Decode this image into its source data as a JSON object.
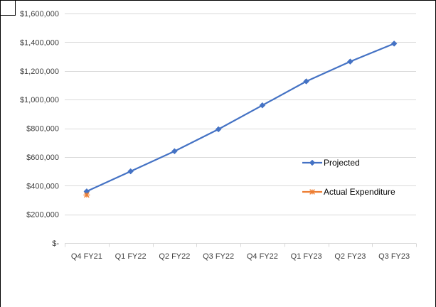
{
  "chart_data": {
    "type": "line",
    "categories": [
      "Q4 FY21",
      "Q1 FY22",
      "Q2 FY22",
      "Q3 FY22",
      "Q4 FY22",
      "Q1 FY23",
      "Q2 FY23",
      "Q3 FY23"
    ],
    "series": [
      {
        "name": "Projected",
        "color": "#4472C4",
        "marker": "diamond",
        "values": [
          360000,
          500000,
          640000,
          793000,
          960000,
          1127000,
          1265000,
          1390000
        ]
      },
      {
        "name": "Actual Expenditure",
        "color": "#ED7D31",
        "marker": "asterisk",
        "values": [
          335000,
          null,
          null,
          null,
          null,
          null,
          null,
          null
        ]
      }
    ],
    "y_ticks": [
      "$-",
      "$200,000",
      "$400,000",
      "$600,000",
      "$800,000",
      "$1,000,000",
      "$1,200,000",
      "$1,400,000",
      "$1,600,000"
    ],
    "ylim": [
      0,
      1600000
    ],
    "y_step": 200000,
    "grid": true,
    "legend_position": "right"
  }
}
